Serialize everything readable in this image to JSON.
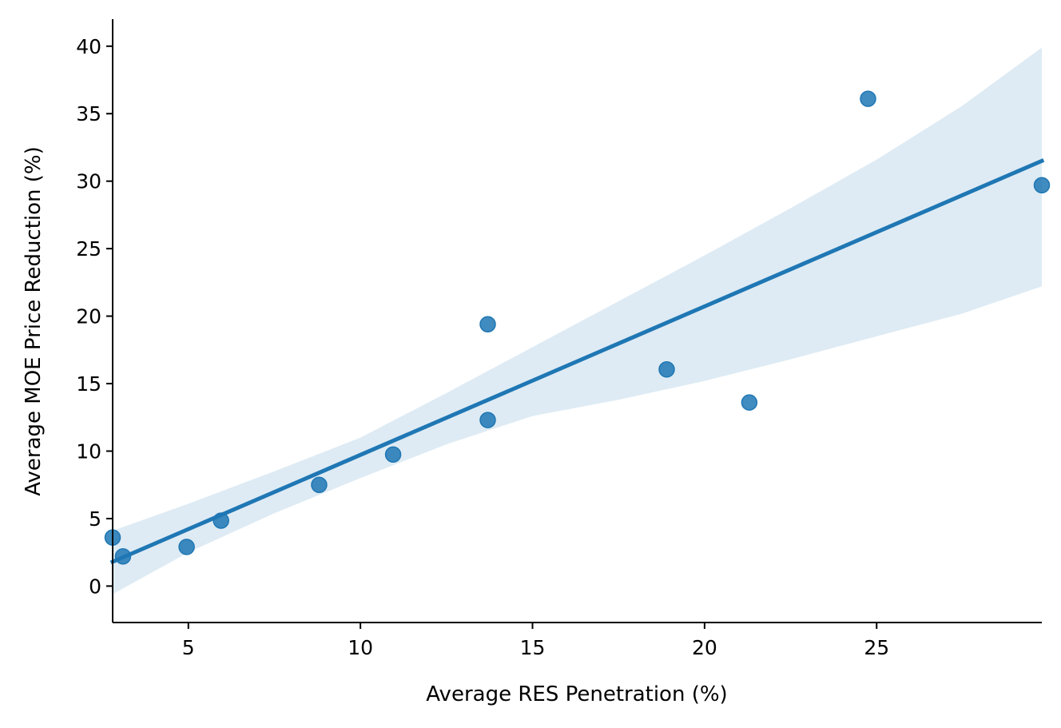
{
  "chart_data": {
    "type": "scatter",
    "xlabel": "Average RES Penetration (%)",
    "ylabel": "Average MOE Price Reduction (%)",
    "xlim": [
      2.8,
      29.8
    ],
    "ylim": [
      -2.7,
      42.0
    ],
    "x_ticks": [
      5,
      10,
      15,
      20,
      25
    ],
    "y_ticks": [
      0,
      5,
      10,
      15,
      20,
      25,
      30,
      35,
      40
    ],
    "grid": false,
    "points": [
      {
        "x": 2.8,
        "y": 3.6
      },
      {
        "x": 3.1,
        "y": 2.2
      },
      {
        "x": 4.95,
        "y": 2.9
      },
      {
        "x": 5.95,
        "y": 4.85
      },
      {
        "x": 8.8,
        "y": 7.5
      },
      {
        "x": 10.95,
        "y": 9.75
      },
      {
        "x": 13.7,
        "y": 12.3
      },
      {
        "x": 13.7,
        "y": 19.4
      },
      {
        "x": 18.9,
        "y": 16.05
      },
      {
        "x": 21.3,
        "y": 13.6
      },
      {
        "x": 24.75,
        "y": 36.1
      },
      {
        "x": 29.8,
        "y": 29.7
      }
    ],
    "regression": {
      "x": [
        2.8,
        29.8
      ],
      "y": [
        1.8,
        31.5
      ]
    },
    "confidence_band": {
      "x": [
        2.8,
        5.0,
        7.5,
        10.0,
        12.5,
        15.0,
        17.5,
        20.0,
        22.5,
        25.0,
        27.5,
        29.8
      ],
      "upper": [
        4.1,
        6.1,
        8.5,
        11.0,
        14.3,
        17.7,
        21.1,
        24.5,
        28.0,
        31.6,
        35.6,
        39.9
      ],
      "lower": [
        -0.6,
        2.5,
        5.4,
        8.0,
        10.5,
        12.6,
        13.8,
        15.2,
        16.8,
        18.5,
        20.2,
        22.2
      ]
    },
    "colors": {
      "points": "#1f77b4",
      "line": "#1f77b4",
      "band": "#1f77b4"
    }
  }
}
